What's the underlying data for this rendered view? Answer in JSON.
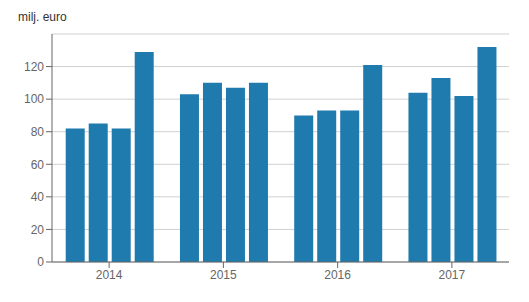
{
  "chart_data": {
    "type": "bar",
    "ylabel": "milj. euro",
    "categories": [
      "2014",
      "2015",
      "2016",
      "2017"
    ],
    "series": [
      {
        "color": "#1f7aad",
        "values": [
          82,
          103,
          90,
          104
        ]
      },
      {
        "color": "#1f7aad",
        "values": [
          85,
          110,
          93,
          113
        ]
      },
      {
        "color": "#1f7aad",
        "values": [
          82,
          107,
          93,
          102
        ]
      },
      {
        "color": "#1f7aad",
        "values": [
          129,
          110,
          121,
          132
        ]
      }
    ],
    "ylim": [
      0,
      140
    ],
    "yticks": [
      0,
      20,
      40,
      60,
      80,
      100,
      120
    ],
    "grid": true
  }
}
